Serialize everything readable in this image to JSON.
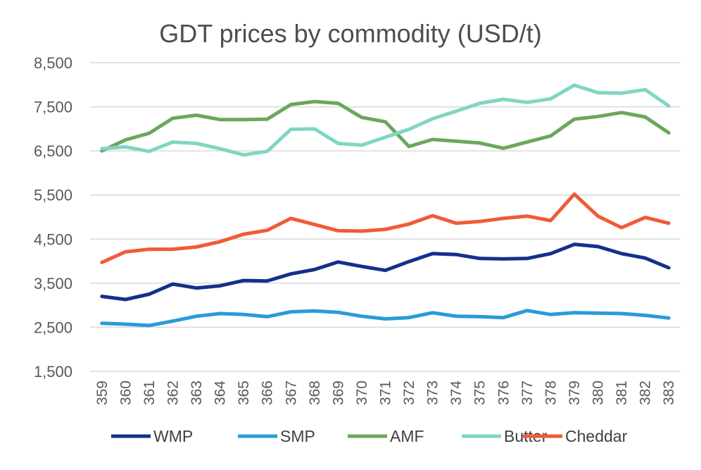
{
  "chart_data": {
    "type": "line",
    "title": "GDT prices by commodity (USD/t)",
    "xlabel": "",
    "ylabel": "",
    "ylim": [
      1500,
      8500
    ],
    "yticks": [
      1500,
      2500,
      3500,
      4500,
      5500,
      6500,
      7500,
      8500
    ],
    "ytick_labels": [
      "1,500",
      "2,500",
      "3,500",
      "4,500",
      "5,500",
      "6,500",
      "7,500",
      "8,500"
    ],
    "grid": "horizontal",
    "legend_position": "bottom",
    "categories": [
      "359",
      "360",
      "361",
      "362",
      "363",
      "364",
      "365",
      "366",
      "367",
      "368",
      "369",
      "370",
      "371",
      "372",
      "373",
      "374",
      "375",
      "376",
      "377",
      "378",
      "379",
      "380",
      "381",
      "382",
      "383"
    ],
    "series": [
      {
        "name": "WMP",
        "color": "#14308a",
        "values": [
          3200,
          3130,
          3250,
          3480,
          3390,
          3440,
          3560,
          3550,
          3710,
          3810,
          3980,
          3880,
          3790,
          3990,
          4170,
          4150,
          4060,
          4050,
          4060,
          4170,
          4380,
          4330,
          4170,
          4070,
          3850
        ]
      },
      {
        "name": "SMP",
        "color": "#2b9bd8",
        "values": [
          2590,
          2570,
          2540,
          2640,
          2750,
          2810,
          2790,
          2740,
          2850,
          2870,
          2840,
          2750,
          2690,
          2720,
          2830,
          2750,
          2740,
          2720,
          2880,
          2790,
          2830,
          2820,
          2810,
          2770,
          2710
        ]
      },
      {
        "name": "AMF",
        "color": "#6aa75c",
        "values": [
          6500,
          6750,
          6900,
          7240,
          7310,
          7210,
          7210,
          7220,
          7550,
          7620,
          7580,
          7260,
          7160,
          6600,
          6760,
          6720,
          6680,
          6560,
          6700,
          6840,
          7220,
          7280,
          7370,
          7270,
          6910
        ]
      },
      {
        "name": "Butter",
        "color": "#7fd6c3",
        "values": [
          6550,
          6590,
          6490,
          6700,
          6670,
          6550,
          6410,
          6490,
          6990,
          7000,
          6670,
          6630,
          6810,
          6990,
          7230,
          7400,
          7580,
          7670,
          7600,
          7680,
          7990,
          7820,
          7810,
          7890,
          7520
        ]
      },
      {
        "name": "Cheddar",
        "color": "#f15a37",
        "values": [
          3970,
          4210,
          4270,
          4270,
          4320,
          4440,
          4610,
          4700,
          4970,
          4830,
          4690,
          4680,
          4720,
          4840,
          5030,
          4860,
          4900,
          4970,
          5020,
          4920,
          5520,
          5020,
          4760,
          4990,
          4860
        ]
      }
    ]
  }
}
